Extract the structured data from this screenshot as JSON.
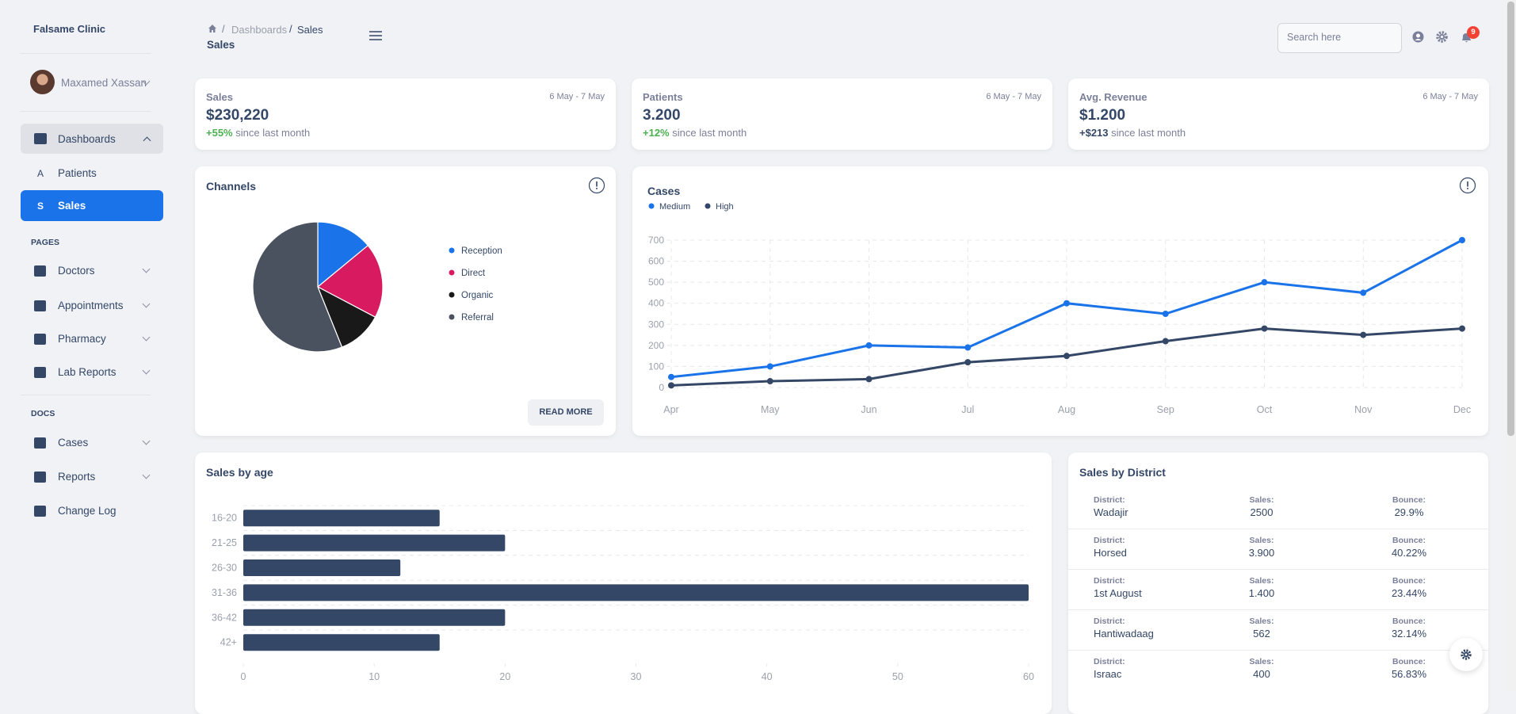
{
  "sidebar": {
    "brand": "Falsame Clinic",
    "user": "Maxamed Xassan",
    "dashboards": {
      "label": "Dashboards",
      "items": [
        {
          "letter": "A",
          "label": "Patients"
        },
        {
          "letter": "S",
          "label": "Sales"
        }
      ]
    },
    "sections": [
      {
        "title": "PAGES",
        "items": [
          "Doctors",
          "Appointments",
          "Pharmacy",
          "Lab Reports"
        ]
      },
      {
        "title": "DOCS",
        "items": [
          "Cases",
          "Reports",
          "Change Log"
        ]
      }
    ]
  },
  "header": {
    "breadcrumb": [
      "Dashboards",
      "Sales"
    ],
    "title": "Sales",
    "search_placeholder": "Search here",
    "notifications": "9"
  },
  "stats": [
    {
      "title": "Sales",
      "date": "6 May - 7 May",
      "value": "$230,220",
      "change": "+55%",
      "note": "since last month"
    },
    {
      "title": "Patients",
      "date": "6 May - 7 May",
      "value": "3.200",
      "change": "+12%",
      "note": "since last month"
    },
    {
      "title": "Avg. Revenue",
      "date": "6 May - 7 May",
      "value": "$1.200",
      "change": "+$213",
      "note": "since last month"
    }
  ],
  "read_more": "READ MORE",
  "chart_data": [
    {
      "type": "pie",
      "title": "Channels",
      "categories": [
        "Reception",
        "Direct",
        "Organic",
        "Referral"
      ],
      "values": [
        15,
        20,
        12,
        60
      ],
      "colors": [
        "#1a73e8",
        "#d81b60",
        "#191919",
        "#4a5260"
      ]
    },
    {
      "type": "line",
      "title": "Cases",
      "categories": [
        "Apr",
        "May",
        "Jun",
        "Jul",
        "Aug",
        "Sep",
        "Oct",
        "Nov",
        "Dec"
      ],
      "series": [
        {
          "name": "Medium",
          "color": "#1a73e8",
          "values": [
            50,
            100,
            200,
            190,
            400,
            350,
            500,
            450,
            700
          ]
        },
        {
          "name": "High",
          "color": "#344767",
          "values": [
            10,
            30,
            40,
            120,
            150,
            220,
            280,
            250,
            280
          ]
        }
      ],
      "ylim": [
        0,
        700
      ],
      "yticks": [
        0,
        100,
        200,
        300,
        400,
        500,
        600,
        700
      ],
      "grid": true
    },
    {
      "type": "hbar",
      "title": "Sales by age",
      "categories": [
        "16-20",
        "21-25",
        "26-30",
        "31-36",
        "36-42",
        "42+"
      ],
      "values": [
        15,
        20,
        12,
        60,
        20,
        15
      ],
      "color": "#344767",
      "xlim": [
        0,
        60
      ],
      "xticks": [
        0,
        10,
        20,
        30,
        40,
        50,
        60
      ]
    }
  ],
  "district_table": {
    "title": "Sales by District",
    "headers": [
      "District:",
      "Sales:",
      "Bounce:"
    ],
    "rows": [
      {
        "district": "Wadajir",
        "sales": "2500",
        "bounce": "29.9%"
      },
      {
        "district": "Horsed",
        "sales": "3.900",
        "bounce": "40.22%"
      },
      {
        "district": "1st August",
        "sales": "1.400",
        "bounce": "23.44%"
      },
      {
        "district": "Hantiwadaag",
        "sales": "562",
        "bounce": "32.14%"
      },
      {
        "district": "Israac",
        "sales": "400",
        "bounce": "56.83%"
      }
    ]
  }
}
